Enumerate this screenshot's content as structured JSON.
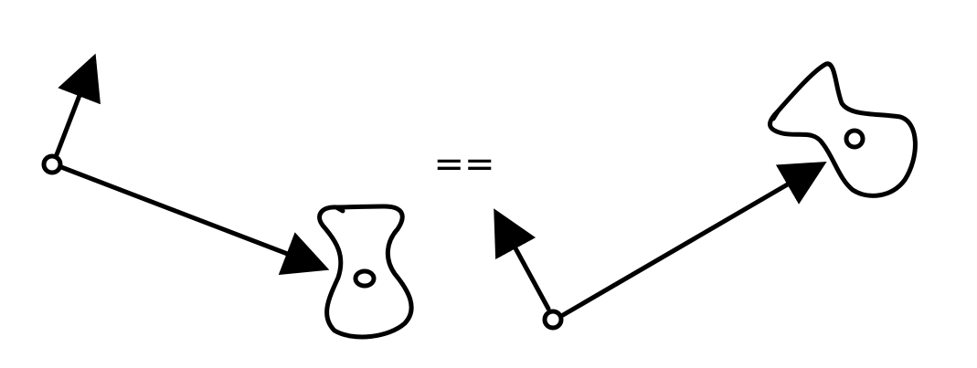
{
  "diagram": {
    "equals_symbol": "==",
    "colors": {
      "stroke": "#000000",
      "background": "#ffffff",
      "origin_fill": "#ffffff"
    },
    "left_frame": {
      "origin_icon": "open-circle",
      "arrows": [
        "short-up-arrow",
        "long-arrow-to-blob"
      ],
      "blob_icon": "closed-blob-with-hole"
    },
    "right_frame": {
      "origin_icon": "open-circle",
      "arrows": [
        "short-up-arrow",
        "long-arrow-to-blob"
      ],
      "blob_icon": "closed-blob-with-hole"
    }
  }
}
